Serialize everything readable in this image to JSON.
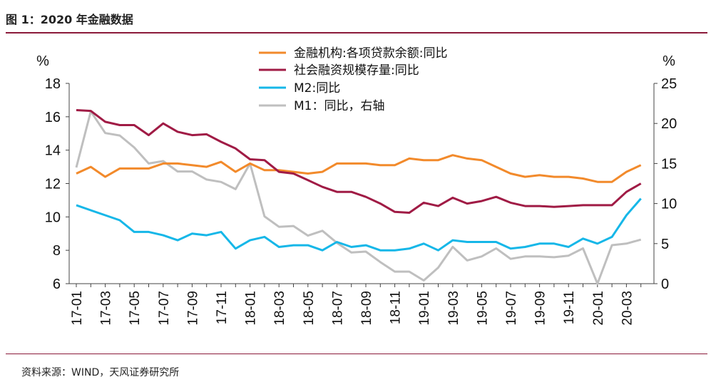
{
  "header": {
    "title": "图 1：2020 年金融数据"
  },
  "footer": {
    "source": "资料来源：WIND，天风证券研究所"
  },
  "colors": {
    "accent": "#8b1a3a"
  },
  "chart_data": {
    "type": "line",
    "left_axis": {
      "unit": "%",
      "ylim": [
        6,
        18
      ],
      "ticks": [
        "6",
        "8",
        "10",
        "12",
        "14",
        "16",
        "18"
      ]
    },
    "right_axis": {
      "unit": "%",
      "ylim": [
        0,
        25
      ],
      "ticks": [
        "0",
        "5",
        "10",
        "15",
        "20",
        "25"
      ]
    },
    "x_tick_labels": [
      "17-01",
      "17-03",
      "17-05",
      "17-07",
      "17-09",
      "17-11",
      "18-01",
      "18-03",
      "18-05",
      "18-07",
      "18-09",
      "18-11",
      "19-01",
      "19-03",
      "19-05",
      "19-07",
      "19-09",
      "19-11",
      "20-01",
      "20-03"
    ],
    "series": [
      {
        "name": "金融机构:各项贷款余额:同比",
        "axis": "left",
        "color": "#f28a2b",
        "values": [
          12.6,
          13.0,
          12.4,
          12.9,
          12.9,
          12.9,
          13.2,
          13.2,
          13.1,
          13.0,
          13.3,
          12.7,
          13.2,
          12.8,
          12.8,
          12.7,
          12.6,
          12.7,
          13.2,
          13.2,
          13.2,
          13.1,
          13.1,
          13.5,
          13.4,
          13.4,
          13.7,
          13.5,
          13.4,
          13.0,
          12.6,
          12.4,
          12.5,
          12.4,
          12.4,
          12.3,
          12.1,
          12.1,
          12.7,
          13.1
        ]
      },
      {
        "name": "社会融资规模存量:同比",
        "axis": "left",
        "color": "#a01b45",
        "values": [
          16.4,
          16.35,
          15.7,
          15.5,
          15.5,
          14.9,
          15.6,
          15.1,
          14.9,
          14.95,
          14.5,
          14.1,
          13.45,
          13.4,
          12.7,
          12.6,
          12.2,
          11.8,
          11.5,
          11.5,
          11.2,
          10.8,
          10.3,
          10.25,
          10.85,
          10.65,
          11.15,
          10.8,
          10.95,
          11.2,
          10.85,
          10.65,
          10.65,
          10.6,
          10.65,
          10.7,
          10.7,
          10.7,
          11.5,
          12.0
        ]
      },
      {
        "name": "M2:同比",
        "axis": "left",
        "color": "#16b7e8",
        "values": [
          10.7,
          10.4,
          10.1,
          9.8,
          9.1,
          9.1,
          8.9,
          8.6,
          9.0,
          8.9,
          9.1,
          8.1,
          8.6,
          8.8,
          8.2,
          8.3,
          8.3,
          8.0,
          8.5,
          8.2,
          8.3,
          8.0,
          8.0,
          8.1,
          8.4,
          8.0,
          8.6,
          8.5,
          8.5,
          8.5,
          8.1,
          8.2,
          8.4,
          8.4,
          8.2,
          8.7,
          8.4,
          8.8,
          10.1,
          11.1
        ]
      },
      {
        "name": "M1：同比，右轴",
        "axis": "right",
        "color": "#bfbfbf",
        "values": [
          14.5,
          21.5,
          18.8,
          18.5,
          17.0,
          15.0,
          15.3,
          14.0,
          14.0,
          13.0,
          12.7,
          11.8,
          15.0,
          8.4,
          7.1,
          7.2,
          6.0,
          6.6,
          5.1,
          3.9,
          4.0,
          2.7,
          1.5,
          1.5,
          0.4,
          2.0,
          4.6,
          2.9,
          3.4,
          4.4,
          3.1,
          3.4,
          3.4,
          3.3,
          3.5,
          4.4,
          0.0,
          4.8,
          5.0,
          5.5
        ]
      }
    ]
  }
}
